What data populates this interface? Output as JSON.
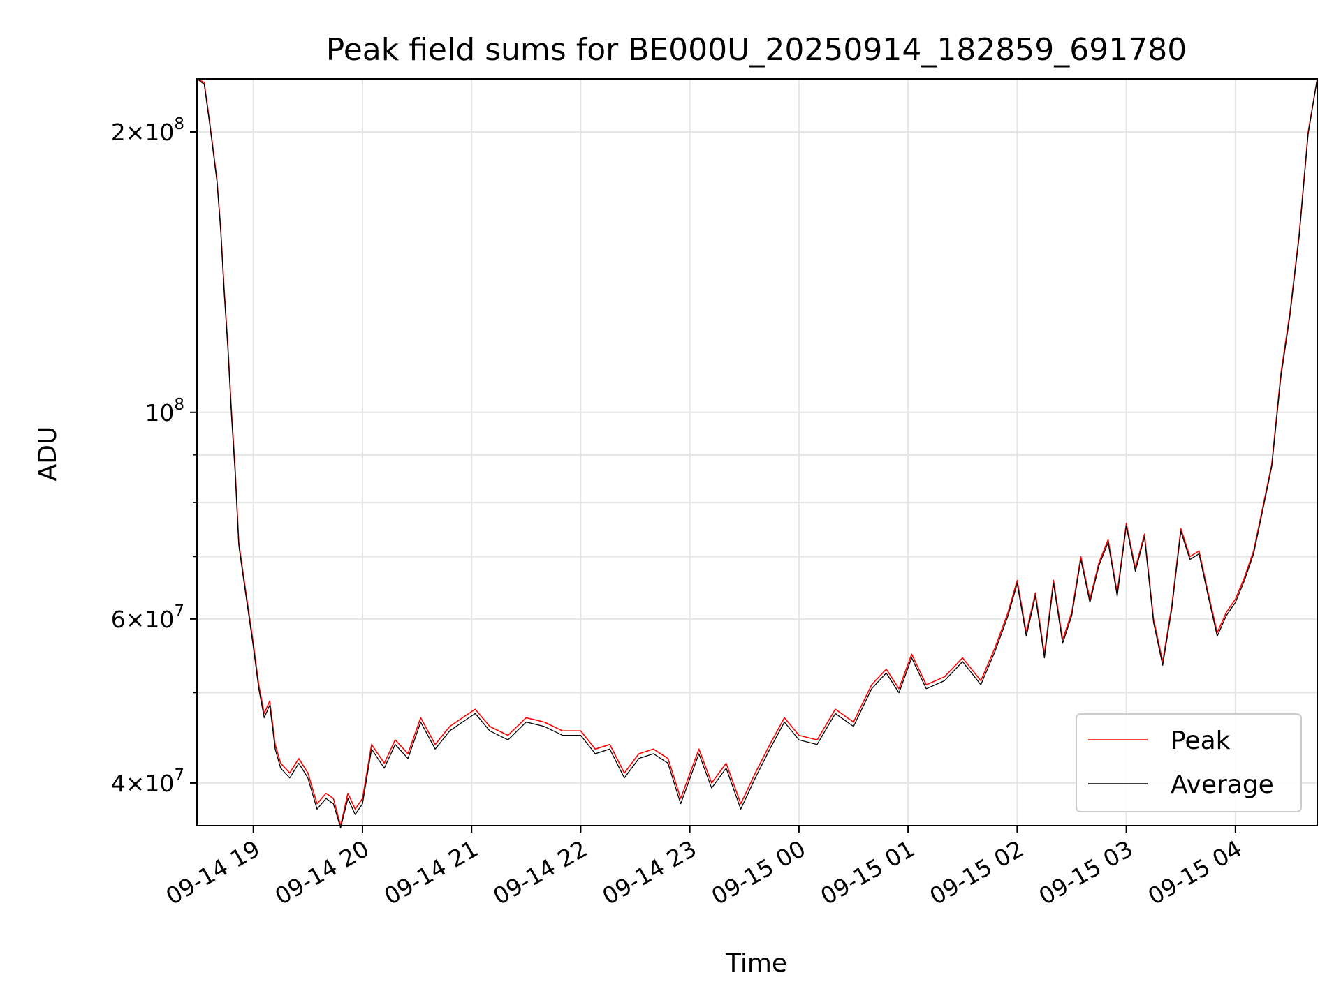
{
  "colors": {
    "peak": "#ff0000",
    "average": "#000000",
    "grid": "#e6e6e6",
    "background": "#ffffff"
  },
  "chart_data": {
    "type": "line",
    "title": "Peak field sums for BE000U_20250914_182859_691780",
    "xlabel": "Time",
    "ylabel": "ADU",
    "yscale": "log",
    "grid": true,
    "legend_position": "lower-right",
    "xlim": [
      "2025-09-14 18:29",
      "2025-09-15 04:45"
    ],
    "ylim": [
      36000000,
      228000000
    ],
    "xticks": [
      {
        "time": "2025-09-14 19:00",
        "label": "09-14 19"
      },
      {
        "time": "2025-09-14 20:00",
        "label": "09-14 20"
      },
      {
        "time": "2025-09-14 21:00",
        "label": "09-14 21"
      },
      {
        "time": "2025-09-14 22:00",
        "label": "09-14 22"
      },
      {
        "time": "2025-09-14 23:00",
        "label": "09-14 23"
      },
      {
        "time": "2025-09-15 00:00",
        "label": "09-15 00"
      },
      {
        "time": "2025-09-15 01:00",
        "label": "09-15 01"
      },
      {
        "time": "2025-09-15 02:00",
        "label": "09-15 02"
      },
      {
        "time": "2025-09-15 03:00",
        "label": "09-15 03"
      },
      {
        "time": "2025-09-15 04:00",
        "label": "09-15 04"
      }
    ],
    "yticks_major": [
      {
        "value": 40000000,
        "mant": "4",
        "exp": "7"
      },
      {
        "value": 60000000,
        "mant": "6",
        "exp": "7"
      },
      {
        "value": 100000000,
        "mant": "",
        "exp": "8"
      },
      {
        "value": 200000000,
        "mant": "2",
        "exp": "8"
      }
    ],
    "yticks_minor": [
      50000000,
      70000000,
      80000000,
      90000000
    ],
    "series": [
      {
        "name": "Peak",
        "color": "#ff0000",
        "x": [
          "2025-09-14 18:29",
          "2025-09-14 18:33",
          "2025-09-14 18:36",
          "2025-09-14 18:40",
          "2025-09-14 18:42",
          "2025-09-14 18:44",
          "2025-09-14 18:46",
          "2025-09-14 18:48",
          "2025-09-14 18:50",
          "2025-09-14 18:52",
          "2025-09-14 18:54",
          "2025-09-14 18:57",
          "2025-09-14 19:00",
          "2025-09-14 19:03",
          "2025-09-14 19:06",
          "2025-09-14 19:09",
          "2025-09-14 19:12",
          "2025-09-14 19:15",
          "2025-09-14 19:20",
          "2025-09-14 19:25",
          "2025-09-14 19:30",
          "2025-09-14 19:35",
          "2025-09-14 19:40",
          "2025-09-14 19:44",
          "2025-09-14 19:48",
          "2025-09-14 19:52",
          "2025-09-14 19:56",
          "2025-09-14 20:00",
          "2025-09-14 20:05",
          "2025-09-14 20:12",
          "2025-09-14 20:18",
          "2025-09-14 20:25",
          "2025-09-14 20:32",
          "2025-09-14 20:40",
          "2025-09-14 20:48",
          "2025-09-14 20:55",
          "2025-09-14 21:02",
          "2025-09-14 21:10",
          "2025-09-14 21:20",
          "2025-09-14 21:30",
          "2025-09-14 21:40",
          "2025-09-14 21:50",
          "2025-09-14 22:00",
          "2025-09-14 22:08",
          "2025-09-14 22:16",
          "2025-09-14 22:24",
          "2025-09-14 22:32",
          "2025-09-14 22:40",
          "2025-09-14 22:48",
          "2025-09-14 22:55",
          "2025-09-14 23:05",
          "2025-09-14 23:12",
          "2025-09-14 23:20",
          "2025-09-14 23:28",
          "2025-09-14 23:36",
          "2025-09-14 23:44",
          "2025-09-14 23:52",
          "2025-09-15 00:00",
          "2025-09-15 00:10",
          "2025-09-15 00:20",
          "2025-09-15 00:30",
          "2025-09-15 00:40",
          "2025-09-15 00:48",
          "2025-09-15 00:55",
          "2025-09-15 01:02",
          "2025-09-15 01:10",
          "2025-09-15 01:20",
          "2025-09-15 01:30",
          "2025-09-15 01:40",
          "2025-09-15 01:48",
          "2025-09-15 01:55",
          "2025-09-15 02:00",
          "2025-09-15 02:05",
          "2025-09-15 02:10",
          "2025-09-15 02:15",
          "2025-09-15 02:20",
          "2025-09-15 02:25",
          "2025-09-15 02:30",
          "2025-09-15 02:35",
          "2025-09-15 02:40",
          "2025-09-15 02:45",
          "2025-09-15 02:50",
          "2025-09-15 02:55",
          "2025-09-15 03:00",
          "2025-09-15 03:05",
          "2025-09-15 03:10",
          "2025-09-15 03:15",
          "2025-09-15 03:20",
          "2025-09-15 03:25",
          "2025-09-15 03:30",
          "2025-09-15 03:35",
          "2025-09-15 03:40",
          "2025-09-15 03:45",
          "2025-09-15 03:50",
          "2025-09-15 03:55",
          "2025-09-15 04:00",
          "2025-09-15 04:05",
          "2025-09-15 04:10",
          "2025-09-15 04:15",
          "2025-09-15 04:20",
          "2025-09-15 04:25",
          "2025-09-15 04:30",
          "2025-09-15 04:35",
          "2025-09-15 04:40",
          "2025-09-15 04:45"
        ],
        "values": [
          228000000,
          226000000,
          205000000,
          178000000,
          158000000,
          135000000,
          118000000,
          100000000,
          87000000,
          72500000,
          68000000,
          62000000,
          56500000,
          51000000,
          47500000,
          49000000,
          44000000,
          42000000,
          41000000,
          42500000,
          41000000,
          38000000,
          39000000,
          38500000,
          36000000,
          39000000,
          37500000,
          38500000,
          44000000,
          42000000,
          44500000,
          43000000,
          47000000,
          44000000,
          46000000,
          47000000,
          48000000,
          46000000,
          45000000,
          47000000,
          46500000,
          45500000,
          45500000,
          43500000,
          44000000,
          41000000,
          43000000,
          43500000,
          42500000,
          38500000,
          43500000,
          40000000,
          42000000,
          38000000,
          41000000,
          44000000,
          47000000,
          45000000,
          44500000,
          48000000,
          46500000,
          51000000,
          53000000,
          50500000,
          55000000,
          51000000,
          52000000,
          54500000,
          51500000,
          56000000,
          61000000,
          66000000,
          58000000,
          64000000,
          55000000,
          66000000,
          57000000,
          61000000,
          70000000,
          63000000,
          69000000,
          73000000,
          64000000,
          76000000,
          68000000,
          74000000,
          60000000,
          54000000,
          62000000,
          75000000,
          70000000,
          71000000,
          64000000,
          58000000,
          61000000,
          63000000,
          66500000,
          71000000,
          79000000,
          88000000,
          110000000,
          128000000,
          155000000,
          200000000,
          228000000
        ]
      },
      {
        "name": "Average",
        "color": "#000000",
        "x": [
          "2025-09-14 18:29",
          "2025-09-14 18:33",
          "2025-09-14 18:36",
          "2025-09-14 18:40",
          "2025-09-14 18:42",
          "2025-09-14 18:44",
          "2025-09-14 18:46",
          "2025-09-14 18:48",
          "2025-09-14 18:50",
          "2025-09-14 18:52",
          "2025-09-14 18:54",
          "2025-09-14 18:57",
          "2025-09-14 19:00",
          "2025-09-14 19:03",
          "2025-09-14 19:06",
          "2025-09-14 19:09",
          "2025-09-14 19:12",
          "2025-09-14 19:15",
          "2025-09-14 19:20",
          "2025-09-14 19:25",
          "2025-09-14 19:30",
          "2025-09-14 19:35",
          "2025-09-14 19:40",
          "2025-09-14 19:44",
          "2025-09-14 19:48",
          "2025-09-14 19:52",
          "2025-09-14 19:56",
          "2025-09-14 20:00",
          "2025-09-14 20:05",
          "2025-09-14 20:12",
          "2025-09-14 20:18",
          "2025-09-14 20:25",
          "2025-09-14 20:32",
          "2025-09-14 20:40",
          "2025-09-14 20:48",
          "2025-09-14 20:55",
          "2025-09-14 21:02",
          "2025-09-14 21:10",
          "2025-09-14 21:20",
          "2025-09-14 21:30",
          "2025-09-14 21:40",
          "2025-09-14 21:50",
          "2025-09-14 22:00",
          "2025-09-14 22:08",
          "2025-09-14 22:16",
          "2025-09-14 22:24",
          "2025-09-14 22:32",
          "2025-09-14 22:40",
          "2025-09-14 22:48",
          "2025-09-14 22:55",
          "2025-09-14 23:05",
          "2025-09-14 23:12",
          "2025-09-14 23:20",
          "2025-09-14 23:28",
          "2025-09-14 23:36",
          "2025-09-14 23:44",
          "2025-09-14 23:52",
          "2025-09-15 00:00",
          "2025-09-15 00:10",
          "2025-09-15 00:20",
          "2025-09-15 00:30",
          "2025-09-15 00:40",
          "2025-09-15 00:48",
          "2025-09-15 00:55",
          "2025-09-15 01:02",
          "2025-09-15 01:10",
          "2025-09-15 01:20",
          "2025-09-15 01:30",
          "2025-09-15 01:40",
          "2025-09-15 01:48",
          "2025-09-15 01:55",
          "2025-09-15 02:00",
          "2025-09-15 02:05",
          "2025-09-15 02:10",
          "2025-09-15 02:15",
          "2025-09-15 02:20",
          "2025-09-15 02:25",
          "2025-09-15 02:30",
          "2025-09-15 02:35",
          "2025-09-15 02:40",
          "2025-09-15 02:45",
          "2025-09-15 02:50",
          "2025-09-15 02:55",
          "2025-09-15 03:00",
          "2025-09-15 03:05",
          "2025-09-15 03:10",
          "2025-09-15 03:15",
          "2025-09-15 03:20",
          "2025-09-15 03:25",
          "2025-09-15 03:30",
          "2025-09-15 03:35",
          "2025-09-15 03:40",
          "2025-09-15 03:45",
          "2025-09-15 03:50",
          "2025-09-15 03:55",
          "2025-09-15 04:00",
          "2025-09-15 04:05",
          "2025-09-15 04:10",
          "2025-09-15 04:15",
          "2025-09-15 04:20",
          "2025-09-15 04:25",
          "2025-09-15 04:30",
          "2025-09-15 04:35",
          "2025-09-15 04:40",
          "2025-09-15 04:45"
        ],
        "values": [
          228000000,
          225000000,
          204000000,
          177000000,
          157000000,
          134000000,
          117000000,
          99000000,
          86000000,
          72000000,
          67500000,
          61500000,
          56000000,
          50500000,
          47000000,
          48500000,
          43500000,
          41500000,
          40500000,
          42000000,
          40500000,
          37500000,
          38500000,
          38000000,
          35800000,
          38500000,
          37000000,
          38000000,
          43500000,
          41500000,
          44000000,
          42500000,
          46500000,
          43500000,
          45500000,
          46500000,
          47500000,
          45500000,
          44500000,
          46500000,
          46000000,
          45000000,
          45000000,
          43000000,
          43500000,
          40500000,
          42500000,
          43000000,
          42000000,
          38000000,
          43000000,
          39500000,
          41500000,
          37500000,
          40500000,
          43500000,
          46500000,
          44500000,
          44000000,
          47500000,
          46000000,
          50500000,
          52500000,
          50000000,
          54500000,
          50500000,
          51500000,
          54000000,
          51000000,
          55500000,
          60500000,
          65500000,
          57500000,
          63500000,
          54500000,
          65500000,
          56500000,
          60500000,
          69500000,
          62500000,
          68500000,
          72500000,
          63500000,
          75500000,
          67500000,
          73500000,
          59500000,
          53500000,
          61500000,
          74500000,
          69500000,
          70500000,
          63500000,
          57500000,
          60500000,
          62500000,
          66000000,
          70500000,
          78500000,
          87500000,
          109000000,
          127000000,
          154000000,
          199000000,
          228000000
        ]
      }
    ]
  }
}
